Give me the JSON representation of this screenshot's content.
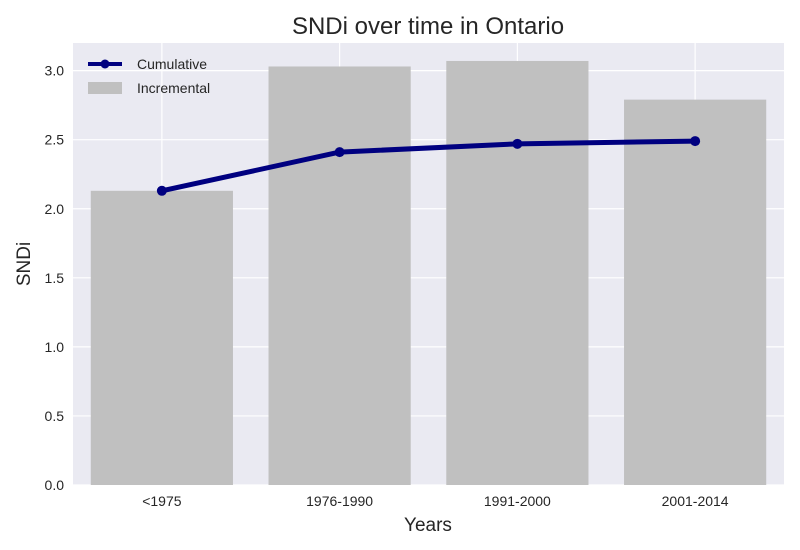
{
  "chart_data": {
    "type": "bar",
    "title": "SNDi over time in Ontario",
    "xlabel": "Years",
    "ylabel": "SNDi",
    "categories": [
      "<1975",
      "1976-1990",
      "1991-2000",
      "2001-2014"
    ],
    "ylim": [
      0,
      3.2
    ],
    "yticks": [
      "0.0",
      "0.5",
      "1.0",
      "1.5",
      "2.0",
      "2.5",
      "3.0"
    ],
    "grid": true,
    "legend_position": "top-left",
    "series": [
      {
        "name": "Cumulative",
        "type": "line",
        "color": "#000080",
        "values": [
          2.13,
          2.41,
          2.47,
          2.49
        ]
      },
      {
        "name": "Incremental",
        "type": "bar",
        "color": "#c0c0c0",
        "values": [
          2.13,
          3.03,
          3.07,
          2.79
        ]
      }
    ],
    "background_color": "#eaeaf2",
    "grid_color": "#ffffff"
  }
}
